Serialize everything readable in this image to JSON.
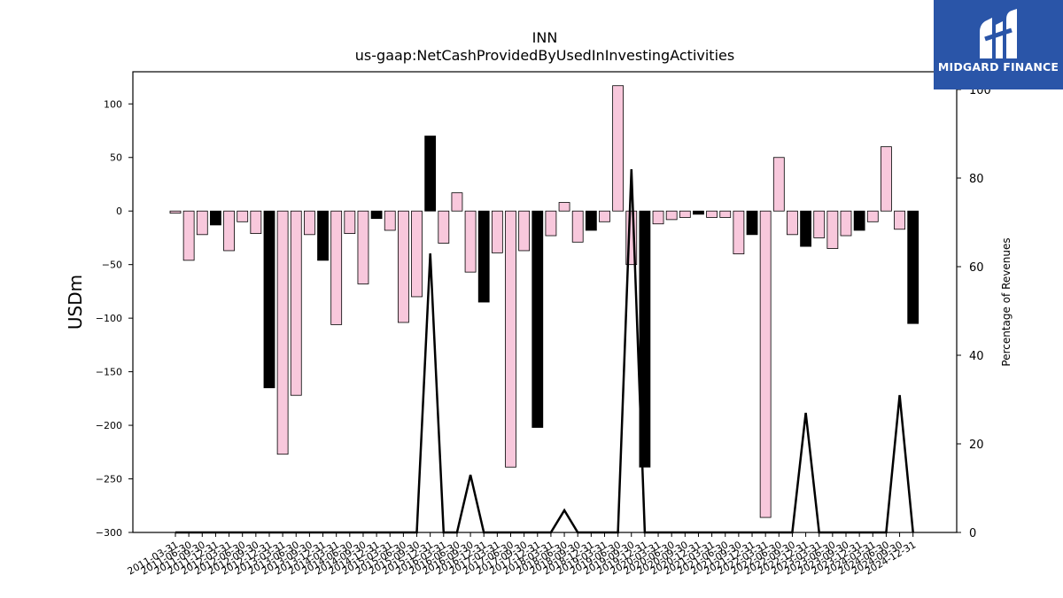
{
  "chart_data": {
    "type": "bar",
    "title": "INN",
    "subtitle": "us-gaap:NetCashProvidedByUsedInInvestingActivities",
    "ylabel": "USDm",
    "y2label": "Percentage of Revenues",
    "ylim": [
      -300,
      130
    ],
    "y2lim": [
      0,
      100
    ],
    "yticks": [
      100,
      50,
      0,
      -50,
      -100,
      -150,
      -200,
      -250,
      -300
    ],
    "y2ticks": [
      100,
      80,
      60,
      40,
      20,
      0
    ],
    "grid": false,
    "categories": [
      "2011-03-31",
      "2011-06-30",
      "2011-09-30",
      "2011-12-31",
      "2012-03-31",
      "2012-06-30",
      "2012-09-30",
      "2012-12-31",
      "2013-03-31",
      "2013-06-30",
      "2013-09-30",
      "2013-12-31",
      "2014-03-31",
      "2014-06-30",
      "2014-09-30",
      "2014-12-31",
      "2015-03-31",
      "2015-06-30",
      "2015-09-30",
      "2015-12-31",
      "2016-03-31",
      "2016-06-30",
      "2016-09-30",
      "2016-12-31",
      "2017-03-31",
      "2017-06-30",
      "2017-09-30",
      "2017-12-31",
      "2018-03-31",
      "2018-06-30",
      "2018-09-30",
      "2018-12-31",
      "2019-03-31",
      "2019-06-30",
      "2019-09-30",
      "2019-12-31",
      "2020-03-31",
      "2020-06-30",
      "2020-09-30",
      "2020-12-31",
      "2021-03-31",
      "2021-06-30",
      "2021-09-30",
      "2021-12-31",
      "2022-03-31",
      "2022-06-30",
      "2022-09-30",
      "2022-12-31",
      "2023-03-31",
      "2023-06-30",
      "2023-09-30",
      "2023-12-31",
      "2024-03-31",
      "2024-06-30",
      "2024-09-30",
      "2024-12-31"
    ],
    "series": [
      {
        "values": [
          -2,
          -46,
          -22,
          -13,
          -37,
          -10,
          -21,
          -165,
          -227,
          -172,
          -22,
          -46,
          -106,
          -21,
          -68,
          -7,
          -18,
          -104,
          -80,
          70,
          -30,
          17,
          -57,
          -85,
          -39,
          -239,
          -37,
          -202,
          -23,
          8,
          -29,
          -18,
          -10,
          117,
          -50,
          -239,
          -12,
          -8,
          -6,
          -3,
          -6,
          -6,
          -40,
          -22,
          -286,
          50,
          -22,
          -33,
          -25,
          -35,
          -23,
          -18,
          -10,
          60,
          -17,
          -105
        ],
        "colors": [
          "#f8c8dc",
          "#f8c8dc",
          "#f8c8dc",
          "#000000",
          "#f8c8dc",
          "#f8c8dc",
          "#f8c8dc",
          "#000000",
          "#f8c8dc",
          "#f8c8dc",
          "#f8c8dc",
          "#000000",
          "#f8c8dc",
          "#f8c8dc",
          "#f8c8dc",
          "#000000",
          "#f8c8dc",
          "#f8c8dc",
          "#f8c8dc",
          "#000000",
          "#f8c8dc",
          "#f8c8dc",
          "#f8c8dc",
          "#000000",
          "#f8c8dc",
          "#f8c8dc",
          "#f8c8dc",
          "#000000",
          "#f8c8dc",
          "#f8c8dc",
          "#f8c8dc",
          "#000000",
          "#f8c8dc",
          "#f8c8dc",
          "#f8c8dc",
          "#000000",
          "#f8c8dc",
          "#f8c8dc",
          "#f8c8dc",
          "#000000",
          "#f8c8dc",
          "#f8c8dc",
          "#f8c8dc",
          "#000000",
          "#f8c8dc",
          "#f8c8dc",
          "#f8c8dc",
          "#000000",
          "#f8c8dc",
          "#f8c8dc",
          "#f8c8dc",
          "#000000",
          "#f8c8dc",
          "#f8c8dc",
          "#f8c8dc",
          "#000000"
        ]
      },
      {
        "type": "line",
        "axis": "right",
        "color": "#000000",
        "values": [
          0,
          0,
          0,
          0,
          0,
          0,
          0,
          0,
          0,
          0,
          0,
          0,
          0,
          0,
          0,
          0,
          0,
          0,
          0,
          63,
          0,
          0,
          13,
          0,
          0,
          0,
          0,
          0,
          0,
          5,
          0,
          0,
          0,
          0,
          82,
          0,
          0,
          0,
          0,
          0,
          0,
          0,
          0,
          0,
          0,
          0,
          0,
          27,
          0,
          0,
          0,
          0,
          0,
          0,
          31,
          0
        ]
      }
    ]
  },
  "branding": {
    "logo_text": "MIDGARD FINANCE",
    "logo_color": "#2a55a8"
  }
}
